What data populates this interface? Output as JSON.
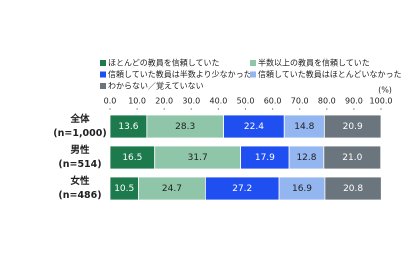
{
  "chart_data": {
    "type": "stacked-bar-horizontal",
    "categories": [
      "全体",
      "男性",
      "女性"
    ],
    "category_notes": [
      "(n=1,000)",
      "(n=514)",
      "(n=486)"
    ],
    "x_unit_label": "(%)",
    "xlim": [
      0,
      100
    ],
    "xticks": [
      {
        "value": 0,
        "label": "0.0"
      },
      {
        "value": 10,
        "label": "10.0"
      },
      {
        "value": 20,
        "label": "20.0"
      },
      {
        "value": 30,
        "label": "30.0"
      },
      {
        "value": 40,
        "label": "40.0"
      },
      {
        "value": 50,
        "label": "50.0"
      },
      {
        "value": 60,
        "label": "60.0"
      },
      {
        "value": 70,
        "label": "70.0"
      },
      {
        "value": 80,
        "label": "80.0"
      },
      {
        "value": 90,
        "label": "90.0"
      },
      {
        "value": 100,
        "label": "100.0"
      }
    ],
    "series": [
      {
        "name": "ほとんどの教員を信頼していた",
        "color": "#1d7a4c",
        "values": [
          13.6,
          16.5,
          10.5
        ]
      },
      {
        "name": "半数以上の教員を信頼していた",
        "color": "#8fc6aa",
        "values": [
          28.3,
          31.7,
          24.7
        ]
      },
      {
        "name": "信頼していた教員は半数より少なかった",
        "color": "#1f4ff0",
        "values": [
          22.4,
          17.9,
          27.2
        ]
      },
      {
        "name": "信頼していた教員はほとんどいなかった",
        "color": "#93b6f0",
        "values": [
          14.8,
          12.8,
          16.9
        ]
      },
      {
        "name": "わからない／覚えていない",
        "color": "#6b757d",
        "values": [
          20.9,
          21.0,
          20.8
        ],
        "value_labels": [
          "20.9",
          "21.0",
          "20.8"
        ]
      }
    ],
    "legend": "top"
  }
}
